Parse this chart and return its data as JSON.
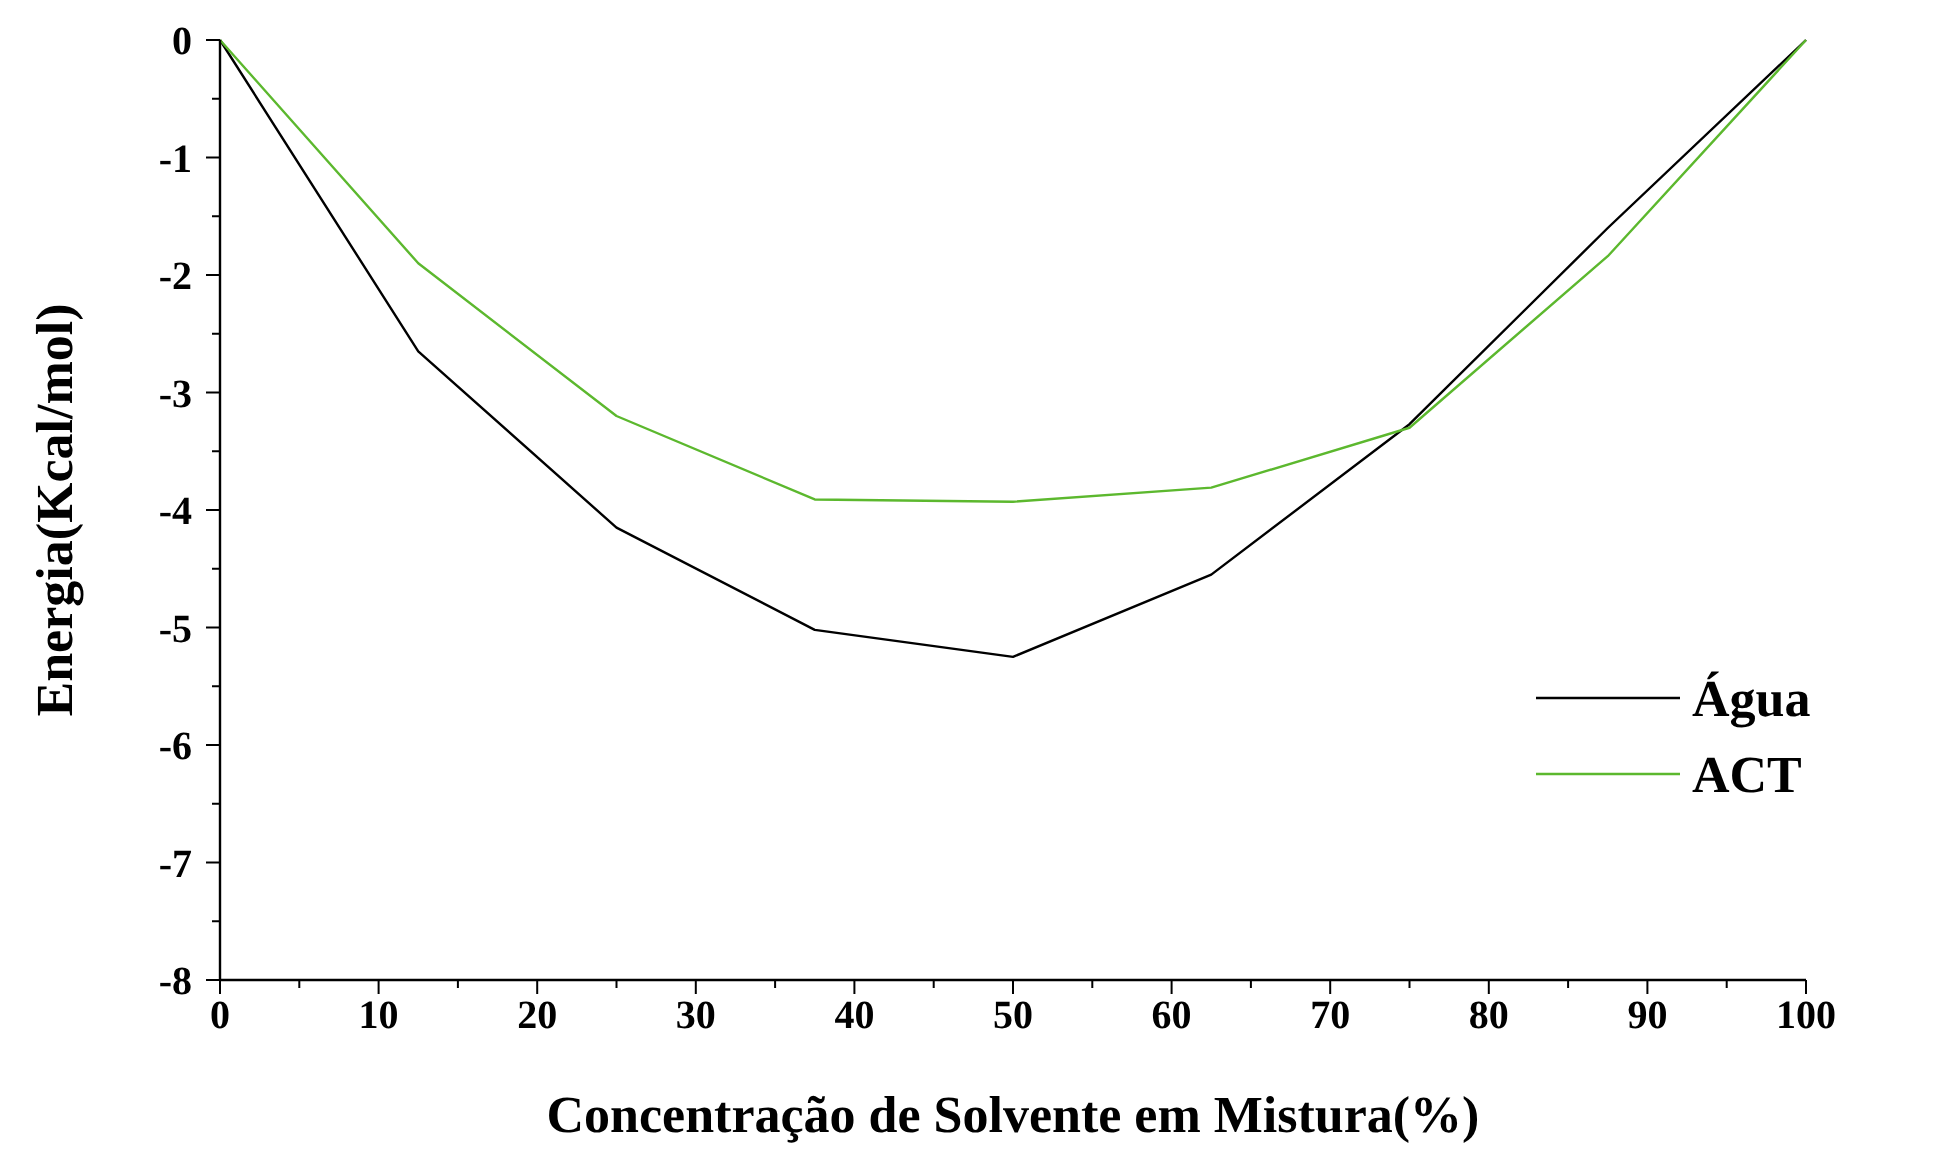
{
  "chart_data": {
    "type": "line",
    "xlabel": "Concentração de Solvente em Mistura(%)",
    "ylabel": "Energia(Kcal/mol)",
    "x": [
      0,
      12.5,
      25,
      37.5,
      50,
      62.5,
      75,
      87.5,
      100
    ],
    "series": [
      {
        "name": "Água",
        "color": "#000000",
        "values": [
          0,
          -2.65,
          -4.15,
          -5.02,
          -5.25,
          -4.55,
          -3.27,
          -1.6,
          0
        ]
      },
      {
        "name": "ACT",
        "color": "#5cb82e",
        "values": [
          0,
          -1.9,
          -3.2,
          -3.91,
          -3.93,
          -3.81,
          -3.3,
          -1.84,
          0
        ]
      }
    ],
    "xlim": [
      0,
      100
    ],
    "ylim": [
      -8,
      0
    ],
    "xticks": [
      0,
      {
        "value": 5,
        "label": null
      },
      10,
      {
        "value": 15,
        "label": null
      },
      20,
      {
        "value": 25,
        "label": null
      },
      30,
      {
        "value": 35,
        "label": null
      },
      40,
      {
        "value": 45,
        "label": null
      },
      50,
      {
        "value": 55,
        "label": null
      },
      60,
      {
        "value": 65,
        "label": null
      },
      70,
      {
        "value": 75,
        "label": null
      },
      80,
      {
        "value": 85,
        "label": null
      },
      90,
      {
        "value": 95,
        "label": null
      },
      100
    ],
    "yticks": [
      -8,
      {
        "value": -7.5,
        "label": null
      },
      -7,
      {
        "value": -6.5,
        "label": null
      },
      -6,
      {
        "value": -5.5,
        "label": null
      },
      -5,
      {
        "value": -4.5,
        "label": null
      },
      -4,
      {
        "value": -3.5,
        "label": null
      },
      -3,
      {
        "value": -2.5,
        "label": null
      },
      -2,
      {
        "value": -1.5,
        "label": null
      },
      -1,
      {
        "value": -0.5,
        "label": null
      },
      0
    ],
    "grid": false,
    "legend": "right",
    "marker": "none",
    "line_style": "solid"
  }
}
